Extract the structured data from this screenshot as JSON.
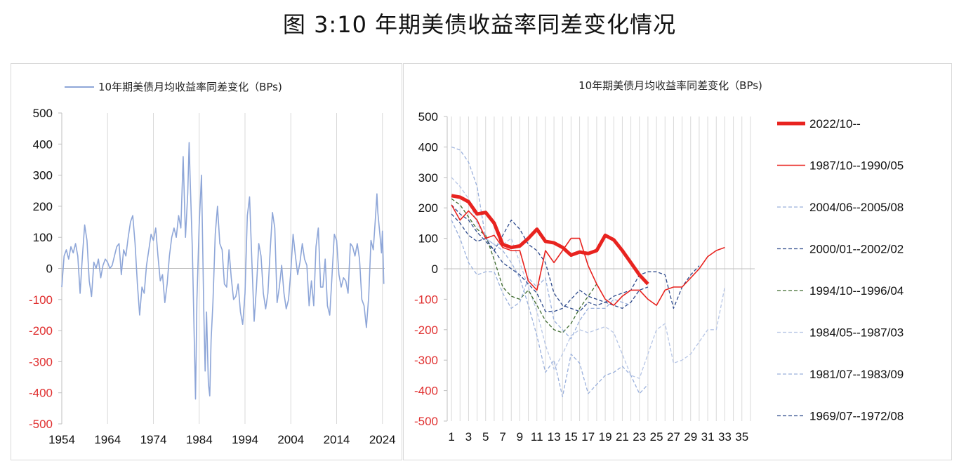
{
  "figure_title": "图 3:10 年期美债收益率同差变化情况",
  "chart_data": [
    {
      "type": "line",
      "title": "10年期美债月均收益率同差变化（BPs)",
      "legend": [
        "10年期美债月均收益率同差变化（BPs)"
      ],
      "legend_position": "top-left",
      "xlabel": "",
      "ylabel": "",
      "xlim": [
        1954,
        2024.5
      ],
      "ylim": [
        -500,
        500
      ],
      "x_ticks": [
        "1954",
        "1964",
        "1974",
        "1984",
        "1994",
        "2004",
        "2014",
        "2024"
      ],
      "y_ticks": [
        "500",
        "400",
        "300",
        "200",
        "100",
        "0",
        "-100",
        "-200",
        "-300",
        "-400",
        "-500"
      ],
      "grid": "vertical",
      "color": "#8ea6d8",
      "series": [
        {
          "name": "10年期美债月均收益率同差变化（BPs)",
          "points": [
            [
              1954.0,
              -60
            ],
            [
              1954.5,
              40
            ],
            [
              1955.0,
              60
            ],
            [
              1955.5,
              30
            ],
            [
              1956.0,
              70
            ],
            [
              1956.5,
              50
            ],
            [
              1957.0,
              80
            ],
            [
              1957.5,
              40
            ],
            [
              1958.0,
              -80
            ],
            [
              1958.5,
              40
            ],
            [
              1959.0,
              140
            ],
            [
              1959.5,
              90
            ],
            [
              1960.0,
              -40
            ],
            [
              1960.5,
              -90
            ],
            [
              1961.0,
              20
            ],
            [
              1961.5,
              0
            ],
            [
              1962.0,
              30
            ],
            [
              1962.5,
              -30
            ],
            [
              1963.0,
              10
            ],
            [
              1963.5,
              30
            ],
            [
              1964.0,
              20
            ],
            [
              1964.5,
              0
            ],
            [
              1965.0,
              10
            ],
            [
              1965.5,
              40
            ],
            [
              1966.0,
              70
            ],
            [
              1966.5,
              80
            ],
            [
              1967.0,
              -20
            ],
            [
              1967.5,
              60
            ],
            [
              1968.0,
              40
            ],
            [
              1968.5,
              100
            ],
            [
              1969.0,
              150
            ],
            [
              1969.5,
              170
            ],
            [
              1970.0,
              80
            ],
            [
              1970.5,
              -50
            ],
            [
              1971.0,
              -150
            ],
            [
              1971.5,
              -60
            ],
            [
              1972.0,
              -80
            ],
            [
              1972.5,
              10
            ],
            [
              1973.0,
              60
            ],
            [
              1973.5,
              110
            ],
            [
              1974.0,
              90
            ],
            [
              1974.5,
              130
            ],
            [
              1975.0,
              40
            ],
            [
              1975.5,
              -40
            ],
            [
              1976.0,
              -20
            ],
            [
              1976.5,
              -110
            ],
            [
              1977.0,
              -50
            ],
            [
              1977.5,
              40
            ],
            [
              1978.0,
              100
            ],
            [
              1978.5,
              130
            ],
            [
              1979.0,
              100
            ],
            [
              1979.5,
              170
            ],
            [
              1980.0,
              130
            ],
            [
              1980.5,
              360
            ],
            [
              1981.0,
              100
            ],
            [
              1981.5,
              240
            ],
            [
              1981.8,
              405
            ],
            [
              1982.0,
              300
            ],
            [
              1982.5,
              60
            ],
            [
              1983.0,
              -280
            ],
            [
              1983.2,
              -420
            ],
            [
              1983.5,
              -100
            ],
            [
              1984.0,
              140
            ],
            [
              1984.5,
              300
            ],
            [
              1985.0,
              -140
            ],
            [
              1985.3,
              -330
            ],
            [
              1985.6,
              -140
            ],
            [
              1986.0,
              -370
            ],
            [
              1986.3,
              -410
            ],
            [
              1986.6,
              -230
            ],
            [
              1987.0,
              -110
            ],
            [
              1987.5,
              110
            ],
            [
              1988.0,
              200
            ],
            [
              1988.5,
              80
            ],
            [
              1989.0,
              60
            ],
            [
              1989.5,
              -50
            ],
            [
              1990.0,
              -60
            ],
            [
              1990.5,
              60
            ],
            [
              1991.0,
              -30
            ],
            [
              1991.5,
              -100
            ],
            [
              1992.0,
              -90
            ],
            [
              1992.5,
              -50
            ],
            [
              1993.0,
              -140
            ],
            [
              1993.5,
              -180
            ],
            [
              1994.0,
              -80
            ],
            [
              1994.5,
              170
            ],
            [
              1995.0,
              230
            ],
            [
              1995.5,
              20
            ],
            [
              1996.0,
              -170
            ],
            [
              1996.5,
              -60
            ],
            [
              1997.0,
              80
            ],
            [
              1997.5,
              40
            ],
            [
              1998.0,
              -80
            ],
            [
              1998.5,
              -130
            ],
            [
              1999.0,
              -80
            ],
            [
              1999.5,
              60
            ],
            [
              2000.0,
              180
            ],
            [
              2000.5,
              130
            ],
            [
              2001.0,
              -110
            ],
            [
              2001.5,
              -60
            ],
            [
              2002.0,
              10
            ],
            [
              2002.5,
              -80
            ],
            [
              2003.0,
              -130
            ],
            [
              2003.5,
              -100
            ],
            [
              2004.0,
              -10
            ],
            [
              2004.5,
              110
            ],
            [
              2005.0,
              40
            ],
            [
              2005.5,
              -20
            ],
            [
              2006.0,
              20
            ],
            [
              2006.5,
              80
            ],
            [
              2007.0,
              30
            ],
            [
              2007.5,
              10
            ],
            [
              2008.0,
              -120
            ],
            [
              2008.5,
              -40
            ],
            [
              2009.0,
              -120
            ],
            [
              2009.5,
              70
            ],
            [
              2010.0,
              130
            ],
            [
              2010.5,
              -60
            ],
            [
              2011.0,
              -60
            ],
            [
              2011.5,
              30
            ],
            [
              2012.0,
              -120
            ],
            [
              2012.5,
              -150
            ],
            [
              2013.0,
              -20
            ],
            [
              2013.5,
              110
            ],
            [
              2014.0,
              90
            ],
            [
              2014.5,
              -20
            ],
            [
              2015.0,
              -60
            ],
            [
              2015.5,
              -30
            ],
            [
              2016.0,
              -40
            ],
            [
              2016.5,
              -80
            ],
            [
              2017.0,
              80
            ],
            [
              2017.5,
              70
            ],
            [
              2018.0,
              40
            ],
            [
              2018.5,
              80
            ],
            [
              2019.0,
              30
            ],
            [
              2019.5,
              -100
            ],
            [
              2020.0,
              -120
            ],
            [
              2020.5,
              -190
            ],
            [
              2021.0,
              -90
            ],
            [
              2021.5,
              90
            ],
            [
              2022.0,
              60
            ],
            [
              2022.5,
              170
            ],
            [
              2022.8,
              240
            ],
            [
              2023.0,
              180
            ],
            [
              2023.5,
              100
            ],
            [
              2023.8,
              50
            ],
            [
              2024.0,
              120
            ],
            [
              2024.3,
              -50
            ]
          ]
        }
      ]
    },
    {
      "type": "line",
      "title": "10年期美债月均收益率同差变化（BPs)",
      "legend_position": "right",
      "xlabel": "",
      "ylabel": "",
      "xlim": [
        1,
        36
      ],
      "ylim": [
        -500,
        500
      ],
      "x_ticks": [
        "1",
        "3",
        "5",
        "7",
        "9",
        "11",
        "13",
        "15",
        "17",
        "19",
        "21",
        "23",
        "25",
        "27",
        "29",
        "31",
        "33",
        "35"
      ],
      "y_ticks": [
        "500",
        "400",
        "300",
        "200",
        "100",
        "0",
        "-100",
        "-200",
        "-300",
        "-400",
        "-500"
      ],
      "grid": "vertical",
      "series": [
        {
          "name": "2022/10--",
          "color": "#e8231f",
          "width": 5,
          "dash": "solid",
          "values": [
            240,
            235,
            220,
            180,
            185,
            150,
            80,
            70,
            75,
            100,
            130,
            90,
            85,
            70,
            45,
            55,
            50,
            60,
            110,
            95,
            60,
            20,
            -20,
            -50
          ]
        },
        {
          "name": "1987/10--1990/05",
          "color": "#e8231f",
          "width": 1.6,
          "dash": "solid",
          "values": [
            210,
            160,
            190,
            160,
            100,
            110,
            70,
            60,
            60,
            -40,
            -70,
            60,
            20,
            60,
            100,
            100,
            10,
            -50,
            -100,
            -120,
            -90,
            -70,
            -70,
            -100,
            -120,
            -70,
            -60,
            -60,
            -30,
            0,
            40,
            60,
            70
          ]
        },
        {
          "name": "2004/06--2005/08",
          "color": "#9ab0dc",
          "width": 1.3,
          "dash": "5,3",
          "values": [
            160,
            100,
            20,
            -20,
            -10,
            -10,
            -80,
            -130,
            -110,
            -30,
            -60,
            -30,
            -170,
            -200,
            -230,
            -170,
            -130,
            -130,
            -130,
            -100,
            -110,
            -120
          ]
        },
        {
          "name": "2000/01--2002/02",
          "color": "#2e4a8c",
          "width": 1.3,
          "dash": "5,3",
          "values": [
            180,
            150,
            110,
            90,
            100,
            60,
            20,
            0,
            -20,
            -50,
            -80,
            -140,
            -140,
            -130,
            -100,
            -70,
            -90,
            -100,
            -110,
            -120,
            -130,
            -110,
            -70,
            -60
          ]
        },
        {
          "name": "1994/10--1996/04",
          "color": "#3e6b2e",
          "width": 1.3,
          "dash": "5,3",
          "values": [
            230,
            210,
            170,
            130,
            110,
            30,
            -60,
            -90,
            -100,
            -70,
            -120,
            -170,
            -200,
            -210,
            -180,
            -130,
            -90,
            -50
          ]
        },
        {
          "name": "1984/05--1987/03",
          "color": "#b7c6e6",
          "width": 1.3,
          "dash": "5,3",
          "values": [
            300,
            270,
            230,
            150,
            100,
            80,
            80,
            100,
            20,
            -60,
            -140,
            -250,
            -330,
            -280,
            -220,
            -200,
            -210,
            -200,
            -190,
            -210,
            -280,
            -350,
            -360,
            -280,
            -200,
            -180,
            -310,
            -300,
            -280,
            -240,
            -200,
            -200,
            -60
          ]
        },
        {
          "name": "1981/07--1983/09",
          "color": "#9ab0dc",
          "width": 1.3,
          "dash": "5,3",
          "values": [
            400,
            390,
            350,
            270,
            100,
            80,
            60,
            20,
            -30,
            -120,
            -220,
            -340,
            -300,
            -420,
            -280,
            -310,
            -410,
            -380,
            -350,
            -340,
            -320,
            -350,
            -410,
            -380
          ]
        },
        {
          "name": "1969/07--1972/08",
          "color": "#2e4a8c",
          "width": 1.3,
          "dash": "5,3",
          "values": [
            210,
            180,
            160,
            120,
            90,
            60,
            110,
            160,
            130,
            80,
            60,
            20,
            -80,
            -120,
            -130,
            -140,
            -110,
            -120,
            -110,
            -90,
            -80,
            -70,
            -20,
            -10,
            -10,
            -20,
            -130,
            -60,
            -20,
            10
          ]
        }
      ]
    }
  ]
}
